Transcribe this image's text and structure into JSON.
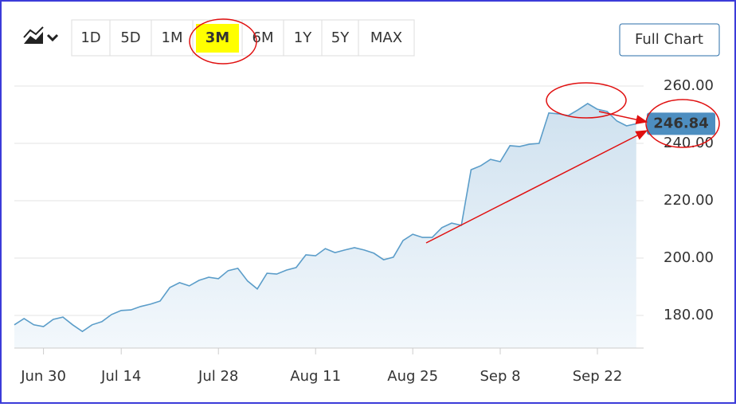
{
  "chart_data": {
    "type": "area",
    "categories": [
      null,
      null,
      null,
      "Jun 30",
      null,
      null,
      null,
      null,
      null,
      null,
      null,
      "Jul 14",
      null,
      null,
      null,
      null,
      null,
      null,
      null,
      null,
      null,
      "Jul 28",
      null,
      null,
      null,
      null,
      null,
      null,
      null,
      null,
      null,
      "Aug 11",
      null,
      null,
      null,
      null,
      null,
      null,
      null,
      null,
      null,
      "Aug 25",
      null,
      null,
      null,
      null,
      null,
      null,
      null,
      null,
      "Sep 8",
      null,
      null,
      null,
      null,
      null,
      null,
      null,
      null,
      null,
      "Sep 22",
      null,
      null,
      null,
      null
    ],
    "series": [
      {
        "color": "#5b9dc9",
        "values": [
          176.7,
          178.9,
          176.7,
          176.1,
          178.6,
          179.4,
          176.7,
          174.4,
          176.7,
          177.8,
          180.3,
          181.7,
          181.9,
          183.1,
          183.9,
          185.0,
          189.7,
          191.4,
          190.3,
          192.2,
          193.3,
          192.8,
          195.6,
          196.4,
          192.0,
          189.2,
          194.7,
          194.4,
          195.8,
          196.7,
          201.1,
          200.8,
          203.3,
          201.9,
          202.8,
          203.6,
          202.8,
          201.7,
          199.4,
          200.3,
          206.1,
          208.3,
          207.2,
          207.2,
          210.6,
          212.2,
          211.4,
          230.8,
          232.2,
          234.4,
          233.6,
          239.2,
          238.9,
          239.7,
          240.0,
          250.6,
          250.3,
          249.7,
          251.7,
          253.9,
          251.9,
          251.1,
          247.8,
          246.1,
          246.84
        ]
      }
    ],
    "ylim": [
      168.6,
      265
    ],
    "yticks": [
      {
        "value": 180,
        "label": "180.00"
      },
      {
        "value": 200,
        "label": "200.00"
      },
      {
        "value": 220,
        "label": "220.00"
      },
      {
        "value": 240,
        "label": "240.00"
      },
      {
        "value": 260,
        "label": "260.00"
      }
    ],
    "grid": true
  },
  "toolbar": {
    "ranges": [
      {
        "label": "1D"
      },
      {
        "label": "5D"
      },
      {
        "label": "1M"
      },
      {
        "label": "3M",
        "active": true
      },
      {
        "label": "6M"
      },
      {
        "label": "1Y"
      },
      {
        "label": "5Y"
      },
      {
        "label": "MAX"
      }
    ],
    "full_chart": "Full Chart"
  }
}
